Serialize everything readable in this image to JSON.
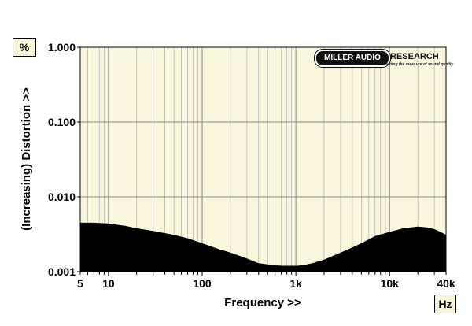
{
  "unit_y": "%",
  "unit_x": "Hz",
  "logo": {
    "name_left": "MILLER AUDIO",
    "name_right": "RESEARCH",
    "tagline": "Getting the measure of sound quality"
  },
  "chart_data": {
    "type": "area",
    "xlabel": "Frequency >>",
    "ylabel": "(Increasing) Distortion >>",
    "x_scale": "log",
    "y_scale": "log",
    "xlim": [
      5,
      40000
    ],
    "ylim": [
      0.001,
      1.0
    ],
    "x_ticks": [
      {
        "value": 5,
        "label": "5"
      },
      {
        "value": 10,
        "label": "10"
      },
      {
        "value": 100,
        "label": "100"
      },
      {
        "value": 1000,
        "label": "1k"
      },
      {
        "value": 10000,
        "label": "10k"
      },
      {
        "value": 40000,
        "label": "40k"
      }
    ],
    "y_ticks": [
      {
        "value": 1.0,
        "label": "1.000"
      },
      {
        "value": 0.1,
        "label": "0.100"
      },
      {
        "value": 0.01,
        "label": "0.010"
      },
      {
        "value": 0.001,
        "label": "0.001"
      }
    ],
    "grid": true,
    "series": [
      {
        "color": "#000000",
        "x": [
          5,
          7,
          10,
          15,
          20,
          30,
          50,
          70,
          100,
          150,
          200,
          300,
          400,
          500,
          600,
          700,
          800,
          900,
          1000,
          1200,
          1500,
          2000,
          3000,
          4000,
          5000,
          7000,
          10000,
          14000,
          20000,
          25000,
          30000,
          35000,
          40000
        ],
        "y": [
          0.0045,
          0.0045,
          0.0044,
          0.0041,
          0.0038,
          0.0035,
          0.0031,
          0.0028,
          0.0024,
          0.002,
          0.0018,
          0.0015,
          0.0013,
          0.00125,
          0.00122,
          0.0012,
          0.0012,
          0.0012,
          0.0012,
          0.00122,
          0.0013,
          0.00145,
          0.0018,
          0.0021,
          0.0024,
          0.003,
          0.0034,
          0.0038,
          0.004,
          0.0039,
          0.0037,
          0.0034,
          0.0031
        ]
      }
    ]
  }
}
